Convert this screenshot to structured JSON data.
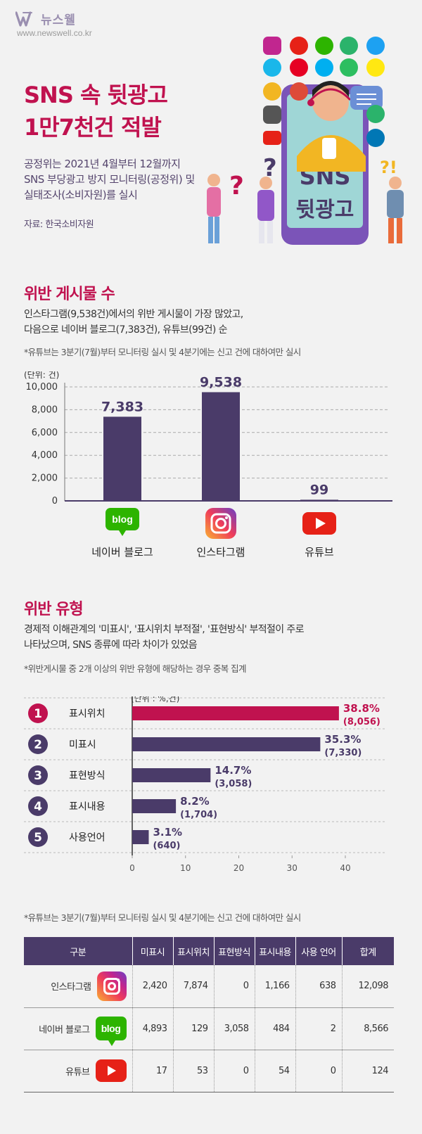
{
  "brand": {
    "name": "뉴스웰",
    "url": "www.newswell.co.kr"
  },
  "header": {
    "title_line1": "SNS 속 뒷광고",
    "title_line2": "1만7천건 적발",
    "intro_line1": "공정위는 2021년 4월부터 12월까지",
    "intro_line2": "SNS 부당광고 방지 모니터링(공정위) 및",
    "intro_line3": "실태조사(소비자원)를 실시",
    "source": "자료: 한국소비자원"
  },
  "illustration": {
    "phone_text_line1": "SNS",
    "phone_text_line2": "뒷광고",
    "icons": [
      "instagram-icon",
      "youtube-icon",
      "blog-icon",
      "share-icon",
      "twitter-icon",
      "vimeo-icon",
      "pinterest-icon",
      "skype-icon",
      "evernote-icon",
      "talk-icon",
      "google-plus-icon",
      "linkedin-icon"
    ]
  },
  "section1": {
    "title": "위반 게시물 수",
    "desc_line1": "인스타그램(9,538건)에서의 위반 게시물이 가장 많았고,",
    "desc_line2": "다음으로 네이버 블로그(7,383건), 유튜브(99건) 순",
    "note": "*유튜브는 3분기(7월)부터 모니터링 실시 및 4분기에는 신고 건에 대하여만 실시"
  },
  "chart_data": [
    {
      "type": "bar",
      "unit_label": "(단위: 건)",
      "categories": [
        "네이버 블로그",
        "인스타그램",
        "유튜브"
      ],
      "values": [
        7383,
        9538,
        99
      ],
      "value_labels": [
        "7,383",
        "9,538",
        "99"
      ],
      "yticks": [
        "0",
        "2,000",
        "4,000",
        "6,000",
        "8,000",
        "10,000"
      ],
      "ylim": [
        0,
        10000
      ],
      "grid": true,
      "bar_color": "#4a3b69"
    },
    {
      "type": "bar",
      "orientation": "horizontal",
      "unit_label": "(단위 : %,건)",
      "categories": [
        "표시위치",
        "미표시",
        "표현방식",
        "표시내용",
        "사용언어"
      ],
      "ranks": [
        "1",
        "2",
        "3",
        "4",
        "5"
      ],
      "values": [
        38.8,
        35.3,
        14.7,
        8.2,
        3.1
      ],
      "counts": [
        "(8,056)",
        "(7,330)",
        "(3,058)",
        "(1,704)",
        "(640)"
      ],
      "pct_labels": [
        "38.8%",
        "35.3%",
        "14.7%",
        "8.2%",
        "3.1%"
      ],
      "xticks": [
        "0",
        "10",
        "20",
        "30",
        "40"
      ],
      "xlim": [
        0,
        47
      ],
      "highlight_color": "#c0124f",
      "bar_color": "#4a3b69"
    }
  ],
  "section2": {
    "title": "위반 유형",
    "desc_line1": "경제적 이해관계의 '미표시', '표시위치 부적절', '표현방식' 부적절이 주로",
    "desc_line2": "나타났으며, SNS 종류에 따라 차이가 있었음",
    "note": "*위반게시물 중 2개 이상의 위반 유형에 해당하는 경우 중복 집계"
  },
  "section3": {
    "note": "*유튜브는 3분기(7월)부터 모니터링 실시 및 4분기에는 신고 건에 대하여만 실시",
    "table": {
      "headers": [
        "구분",
        "미표시",
        "표시위치",
        "표현방식",
        "표시내용",
        "사용 언어",
        "합계"
      ],
      "rows": [
        {
          "name": "인스타그램",
          "cells": [
            "2,420",
            "7,874",
            "0",
            "1,166",
            "638",
            "12,098"
          ]
        },
        {
          "name": "네이버 블로그",
          "cells": [
            "4,893",
            "129",
            "3,058",
            "484",
            "2",
            "8,566"
          ]
        },
        {
          "name": "유튜브",
          "cells": [
            "17",
            "53",
            "0",
            "54",
            "0",
            "124"
          ]
        }
      ]
    }
  }
}
